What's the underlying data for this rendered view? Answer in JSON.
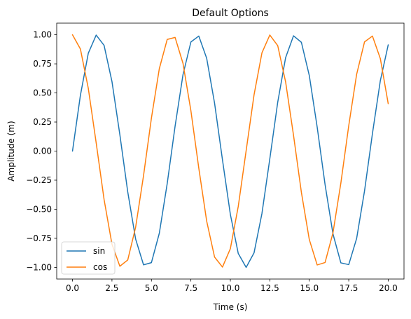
{
  "chart_data": {
    "type": "line",
    "title": "Default Options",
    "xlabel": "Time (s)",
    "ylabel": "Amplitude (m)",
    "xlim": [
      -1.0,
      21.0
    ],
    "ylim": [
      -1.1,
      1.1
    ],
    "xticks": [
      0.0,
      2.5,
      5.0,
      7.5,
      10.0,
      12.5,
      15.0,
      17.5,
      20.0
    ],
    "xtick_labels": [
      "0.0",
      "2.5",
      "5.0",
      "7.5",
      "10.0",
      "12.5",
      "15.0",
      "17.5",
      "20.0"
    ],
    "yticks": [
      -1.0,
      -0.75,
      -0.5,
      -0.25,
      0.0,
      0.25,
      0.5,
      0.75,
      1.0
    ],
    "ytick_labels": [
      "−1.00",
      "−0.75",
      "−0.50",
      "−0.25",
      "0.00",
      "0.25",
      "0.50",
      "0.75",
      "1.00"
    ],
    "grid": false,
    "legend_placement": "lower-left",
    "x": [
      0.0,
      0.5,
      1.0,
      1.5,
      2.0,
      2.5,
      3.0,
      3.5,
      4.0,
      4.5,
      5.0,
      5.5,
      6.0,
      6.5,
      7.0,
      7.5,
      8.0,
      8.5,
      9.0,
      9.5,
      10.0,
      10.5,
      11.0,
      11.5,
      12.0,
      12.5,
      13.0,
      13.5,
      14.0,
      14.5,
      15.0,
      15.5,
      16.0,
      16.5,
      17.0,
      17.5,
      18.0,
      18.5,
      19.0,
      19.5,
      20.0
    ],
    "series": [
      {
        "name": "sin",
        "color": "#1f77b4",
        "values": [
          0.0,
          0.479,
          0.841,
          0.997,
          0.909,
          0.598,
          0.141,
          -0.351,
          -0.757,
          -0.978,
          -0.959,
          -0.706,
          -0.279,
          0.215,
          0.657,
          0.938,
          0.989,
          0.798,
          0.412,
          -0.075,
          -0.544,
          -0.88,
          -1.0,
          -0.875,
          -0.537,
          -0.066,
          0.42,
          0.803,
          0.991,
          0.935,
          0.65,
          0.206,
          -0.288,
          -0.712,
          -0.961,
          -0.976,
          -0.751,
          -0.342,
          0.15,
          0.605,
          0.913
        ]
      },
      {
        "name": "cos",
        "color": "#ff7f0e",
        "values": [
          1.0,
          0.878,
          0.54,
          0.071,
          -0.416,
          -0.801,
          -0.99,
          -0.936,
          -0.654,
          -0.211,
          0.284,
          0.709,
          0.96,
          0.977,
          0.754,
          0.347,
          -0.146,
          -0.602,
          -0.911,
          -0.997,
          -0.839,
          -0.476,
          0.004,
          0.483,
          0.844,
          0.998,
          0.907,
          0.595,
          0.137,
          -0.355,
          -0.76,
          -0.979,
          -0.958,
          -0.703,
          -0.275,
          0.219,
          0.66,
          0.939,
          0.989,
          0.796,
          0.408
        ]
      }
    ]
  }
}
